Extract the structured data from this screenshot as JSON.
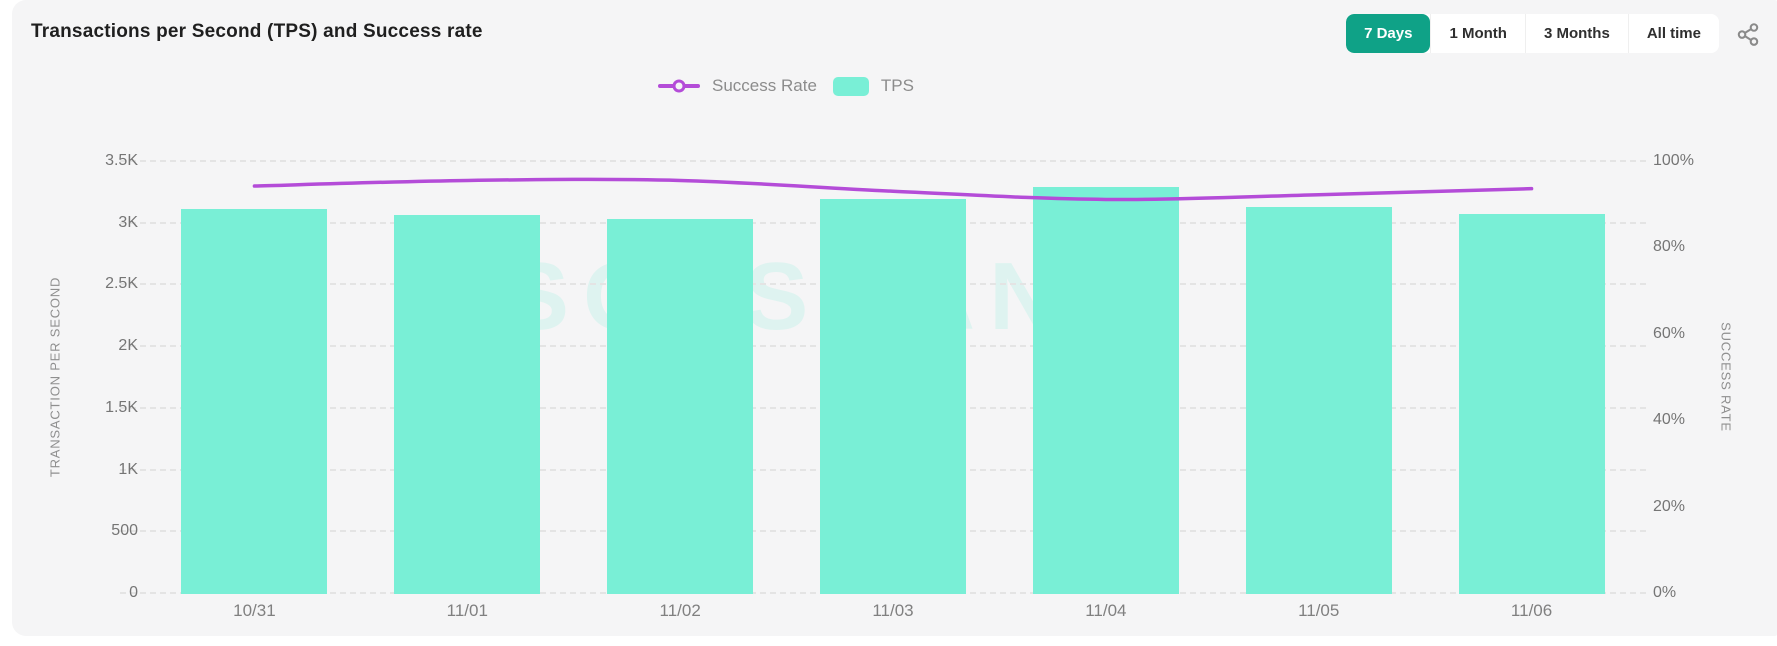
{
  "header": {
    "title": "Transactions per Second (TPS) and Success rate",
    "ranges": [
      "7 Days",
      "1 Month",
      "3 Months",
      "All time"
    ],
    "active_range": "7 Days"
  },
  "legend": {
    "success_rate_label": "Success Rate",
    "tps_label": "TPS"
  },
  "watermark": "SOLSCAN",
  "colors": {
    "bar": "#79efd6",
    "line": "#b44cd8",
    "active_button": "#0fa287",
    "watermark": "rgba(121,239,214,0.18)",
    "icon": "#8a8a8a"
  },
  "chart_data": {
    "type": "bar",
    "title": "Transactions per Second (TPS) and Success rate",
    "categories": [
      "10/31",
      "11/01",
      "11/02",
      "11/03",
      "11/04",
      "11/05",
      "11/06"
    ],
    "series": [
      {
        "name": "TPS",
        "type": "bar",
        "axis": "left",
        "values": [
          3110,
          3060,
          3030,
          3190,
          3290,
          3130,
          3070
        ]
      },
      {
        "name": "Success Rate",
        "type": "line",
        "axis": "right",
        "values": [
          94.2,
          95.5,
          95.5,
          93.0,
          91.1,
          92.2,
          93.6
        ]
      }
    ],
    "left_axis": {
      "label": "TRANSACTION PER SECOND",
      "min": 0,
      "max": 3500,
      "ticks": [
        "0",
        "500",
        "1K",
        "1.5K",
        "2K",
        "2.5K",
        "3K",
        "3.5K"
      ]
    },
    "right_axis": {
      "label": "SUCCESS RATE",
      "min": 0,
      "max": 100,
      "ticks": [
        "0%",
        "20%",
        "40%",
        "60%",
        "80%",
        "100%"
      ]
    },
    "grid": "dashed horizontal",
    "legend_position": "top center"
  }
}
